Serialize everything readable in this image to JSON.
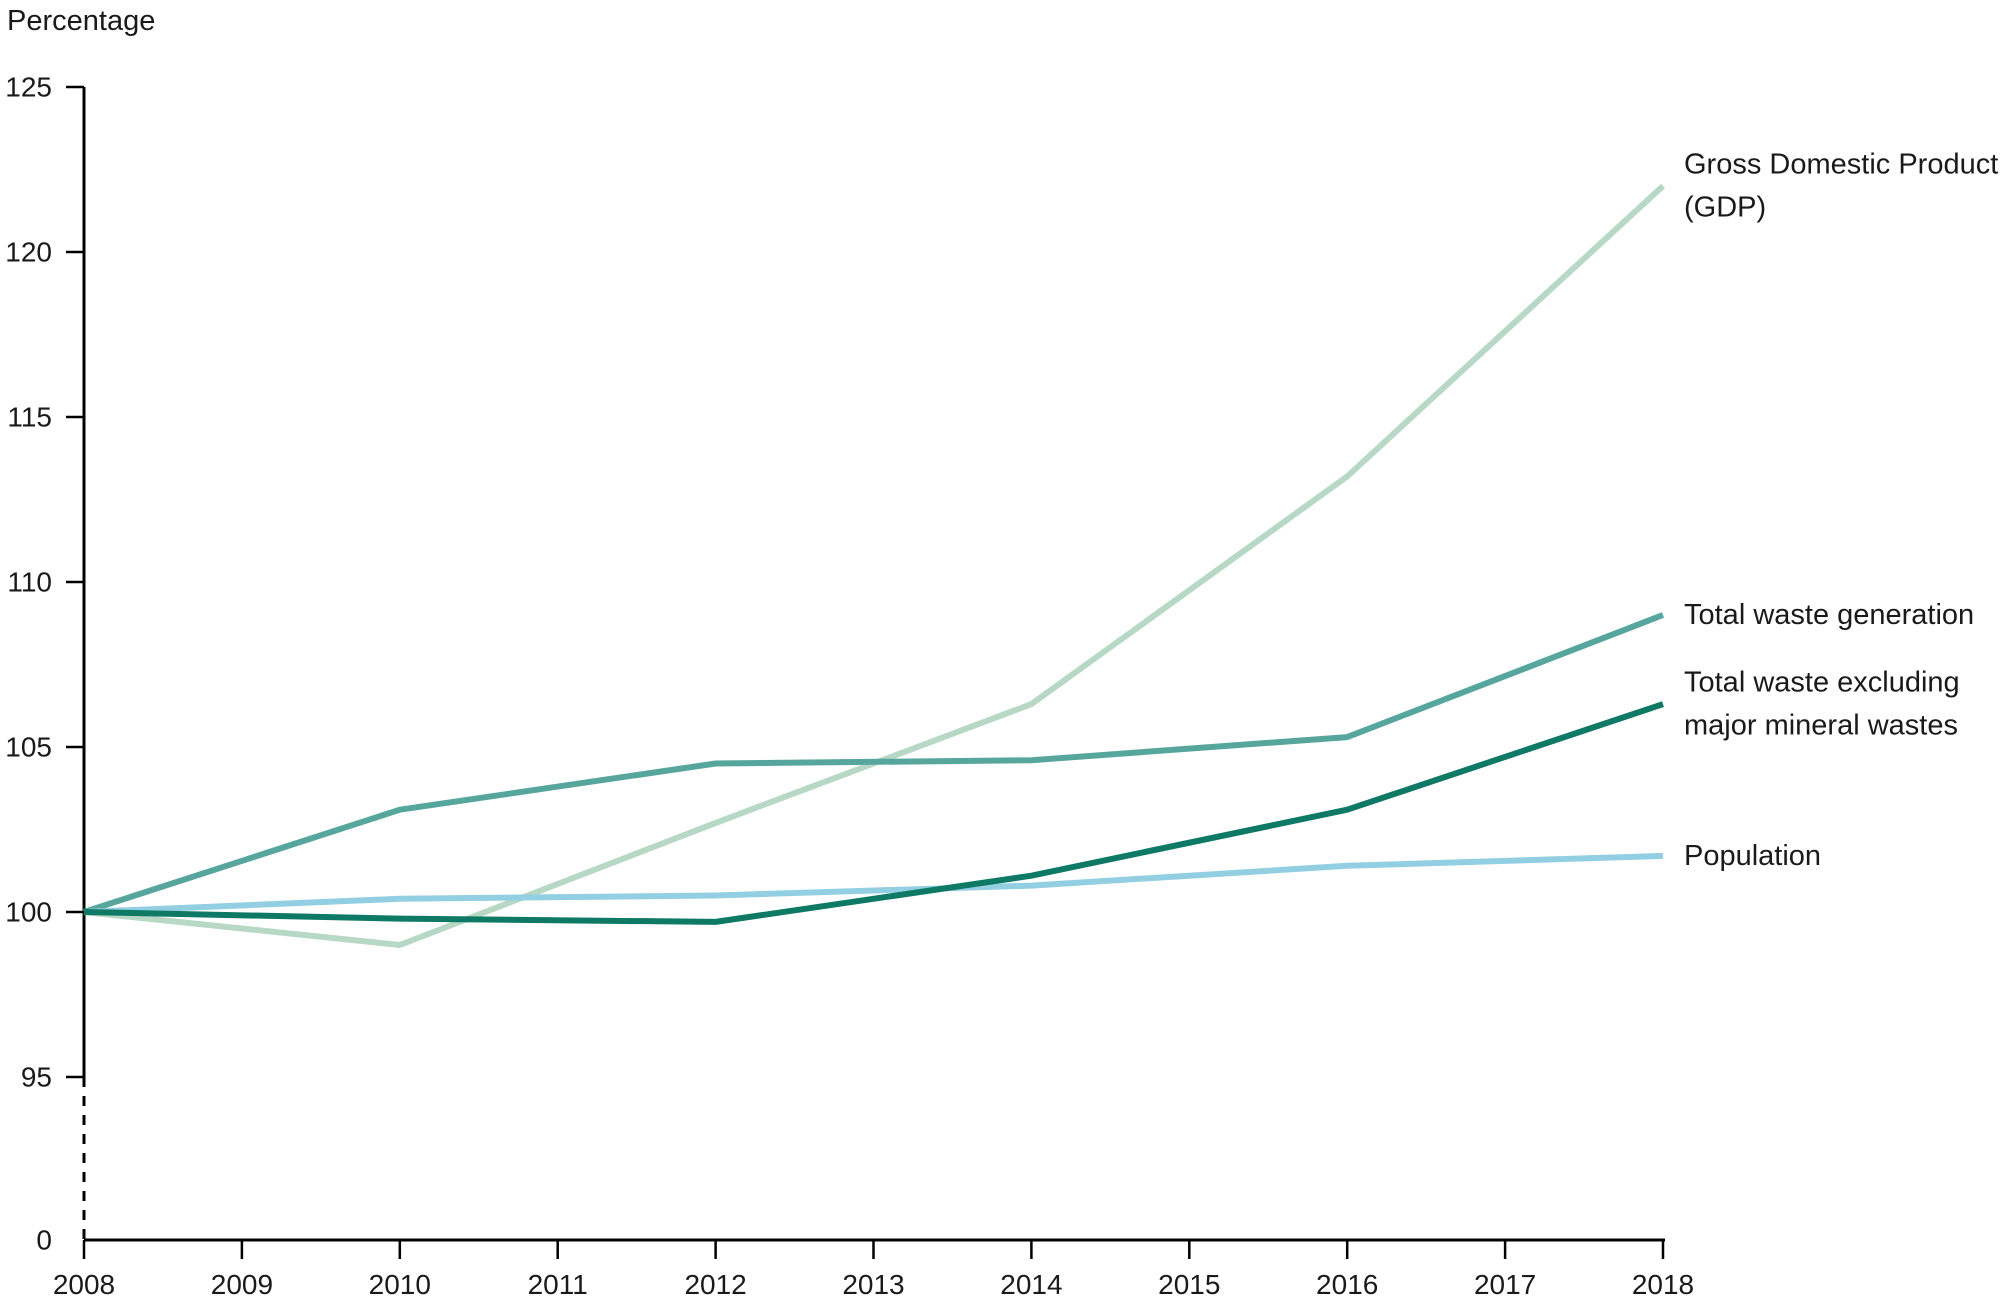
{
  "chart": {
    "y_axis_title": "Percentage",
    "origin_label": "0"
  },
  "chart_data": {
    "type": "line",
    "title": "",
    "ylabel": "Percentage",
    "xlabel": "",
    "x": [
      2008,
      2010,
      2012,
      2014,
      2016,
      2018
    ],
    "x_ticks": [
      2008,
      2009,
      2010,
      2011,
      2012,
      2013,
      2014,
      2015,
      2016,
      2017,
      2018
    ],
    "y_ticks": [
      125,
      120,
      115,
      110,
      105,
      100,
      95
    ],
    "y_axis_break_to_zero": true,
    "baseline_value": 100,
    "grid": false,
    "legend_position": "right-line-end-labels",
    "axis_color": "#000000",
    "text_color": "#1a1a1a",
    "series": [
      {
        "name": "Gross Domestic Product (GDP)",
        "label_lines": [
          "Gross Domestic Product",
          "(GDP)"
        ],
        "color": "#b7d8c5",
        "values": [
          100,
          99.0,
          102.7,
          106.3,
          113.2,
          122.0
        ]
      },
      {
        "name": "Total waste generation",
        "label_lines": [
          "Total waste generation"
        ],
        "color": "#57a69d",
        "values": [
          100,
          103.1,
          104.5,
          104.6,
          105.3,
          109.0
        ]
      },
      {
        "name": "Total waste excluding major mineral wastes",
        "label_lines": [
          "Total waste excluding",
          "major mineral wastes"
        ],
        "color": "#0e7964",
        "values": [
          100,
          99.8,
          99.7,
          101.1,
          103.1,
          106.3
        ]
      },
      {
        "name": "Population",
        "label_lines": [
          "Population"
        ],
        "color": "#93cfe3",
        "values": [
          100,
          100.4,
          100.5,
          100.8,
          101.4,
          101.7
        ]
      }
    ]
  }
}
